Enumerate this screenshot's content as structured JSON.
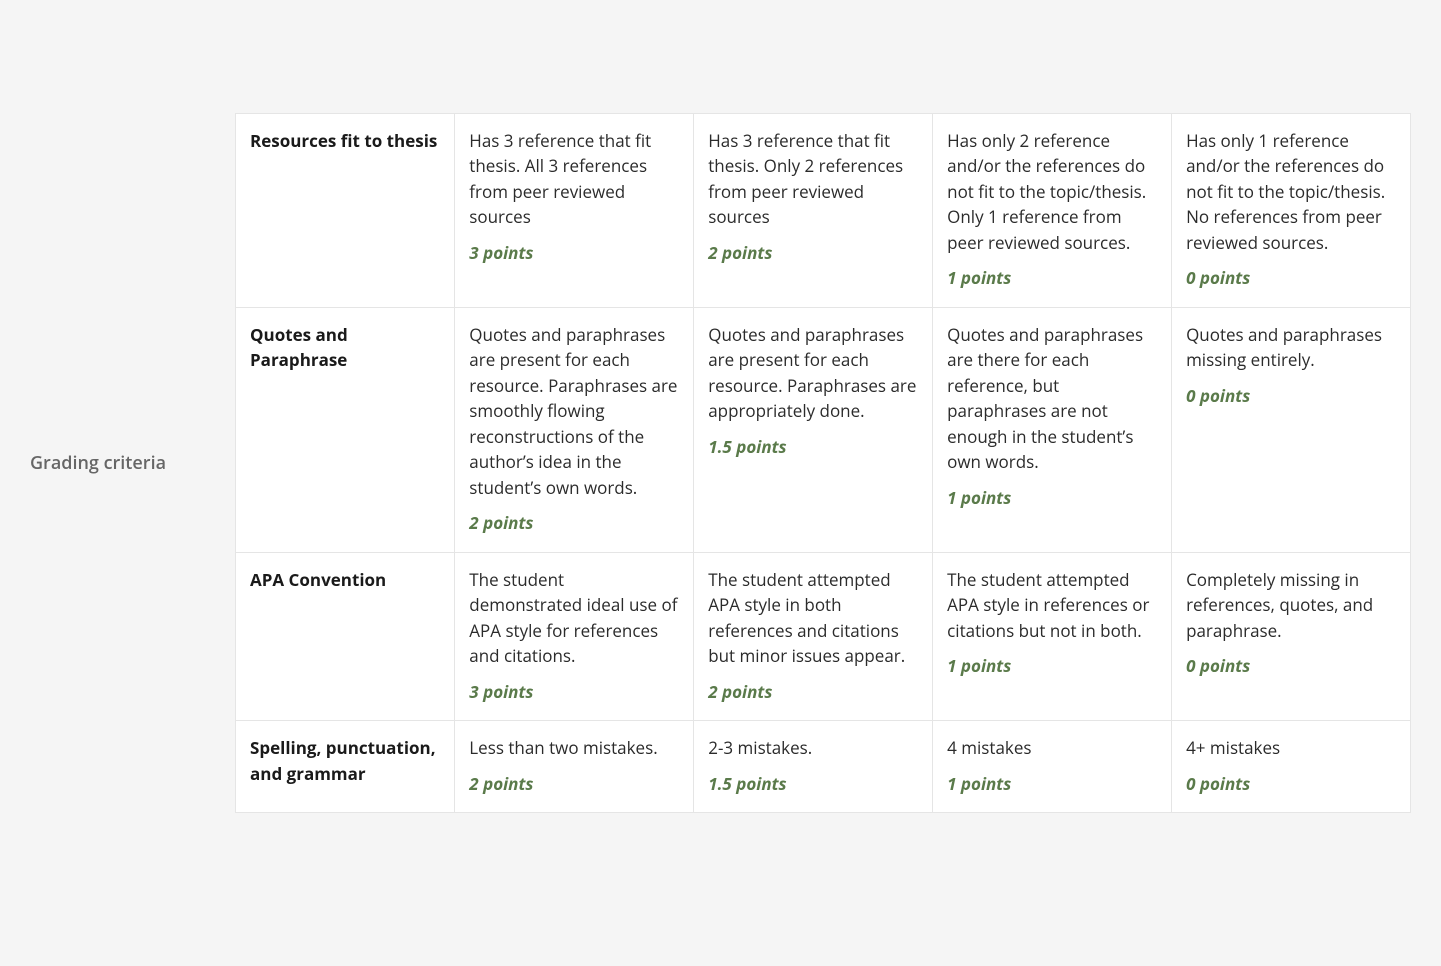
{
  "label": "Grading criteria",
  "colors": {
    "page_bg": "#f5f5f5",
    "table_bg": "#ffffff",
    "border": "#e5e5e5",
    "text": "#2b2b2b",
    "label_text": "#666666",
    "points": "#5a7a4a"
  },
  "rows": [
    {
      "criterion": "Resources fit to thesis",
      "levels": [
        {
          "desc": "Has 3 reference that fit thesis. All 3 references from peer reviewed sources",
          "points": "3 points"
        },
        {
          "desc": "Has 3 reference that fit thesis. Only 2 references from peer reviewed sources",
          "points": "2 points"
        },
        {
          "desc": "Has only 2 reference and/or the references do not fit to the topic/thesis. Only 1 reference from peer reviewed sources.",
          "points": "1 points"
        },
        {
          "desc": "Has only 1 reference and/or the references do not fit to the topic/thesis. No references from peer reviewed sources.",
          "points": "0 points"
        }
      ]
    },
    {
      "criterion": "Quotes and Paraphrase",
      "levels": [
        {
          "desc": "Quotes and paraphrases are present for each resource. Paraphrases are smoothly flowing reconstructions of the author’s idea in the student’s own words.",
          "points": "2 points"
        },
        {
          "desc": "Quotes and paraphrases are present for each resource. Paraphrases are appropriately done.",
          "points": "1.5 points"
        },
        {
          "desc": "Quotes and paraphrases are there for each reference, but paraphrases are not enough in the student’s own words.",
          "points": "1 points"
        },
        {
          "desc": "Quotes and paraphrases missing entirely.",
          "points": "0 points"
        }
      ]
    },
    {
      "criterion": "APA Convention",
      "levels": [
        {
          "desc": "The student demonstrated ideal use of APA style for references and citations.",
          "points": "3 points"
        },
        {
          "desc": "The student attempted APA style in both references and citations but minor issues appear.",
          "points": "2 points"
        },
        {
          "desc": "The student attempted APA style in references or citations but not in both.",
          "points": "1 points"
        },
        {
          "desc": "Completely missing in references, quotes, and paraphrase.",
          "points": "0 points"
        }
      ]
    },
    {
      "criterion": "Spelling, punctuation, and grammar",
      "levels": [
        {
          "desc": "Less than two mistakes.",
          "points": "2 points"
        },
        {
          "desc": "2-3 mistakes.",
          "points": "1.5 points"
        },
        {
          "desc": "4 mistakes",
          "points": "1 points"
        },
        {
          "desc": "4+ mistakes",
          "points": "0 points"
        }
      ]
    }
  ]
}
